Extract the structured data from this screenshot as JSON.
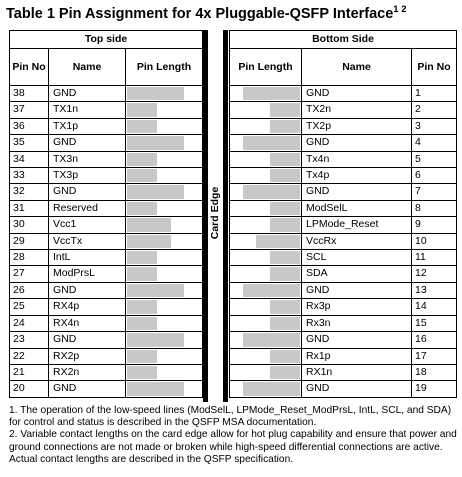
{
  "title": "Table 1  Pin Assignment for 4x Pluggable-QSFP Interface",
  "title_sup": "1 2",
  "top_side": {
    "label": "Top side",
    "headers": [
      "Pin No",
      "Name",
      "Pin Length"
    ],
    "rows": [
      {
        "pin": "38",
        "name": "GND",
        "length": "long"
      },
      {
        "pin": "37",
        "name": "TX1n",
        "length": "short"
      },
      {
        "pin": "36",
        "name": "TX1p",
        "length": "short"
      },
      {
        "pin": "35",
        "name": "GND",
        "length": "long"
      },
      {
        "pin": "34",
        "name": "TX3n",
        "length": "short"
      },
      {
        "pin": "33",
        "name": "TX3p",
        "length": "short"
      },
      {
        "pin": "32",
        "name": "GND",
        "length": "long"
      },
      {
        "pin": "31",
        "name": "Reserved",
        "length": "short"
      },
      {
        "pin": "30",
        "name": "Vcc1",
        "length": "medium"
      },
      {
        "pin": "29",
        "name": "VccTx",
        "length": "medium"
      },
      {
        "pin": "28",
        "name": "IntL",
        "length": "short"
      },
      {
        "pin": "27",
        "name": "ModPrsL",
        "length": "short"
      },
      {
        "pin": "26",
        "name": "GND",
        "length": "long"
      },
      {
        "pin": "25",
        "name": "RX4p",
        "length": "short"
      },
      {
        "pin": "24",
        "name": "RX4n",
        "length": "short"
      },
      {
        "pin": "23",
        "name": "GND",
        "length": "long"
      },
      {
        "pin": "22",
        "name": "RX2p",
        "length": "short"
      },
      {
        "pin": "21",
        "name": "RX2n",
        "length": "short"
      },
      {
        "pin": "20",
        "name": "GND",
        "length": "long"
      }
    ]
  },
  "bottom_side": {
    "label": "Bottom Side",
    "headers": [
      "Pin Length",
      "Name",
      "Pin No"
    ],
    "rows": [
      {
        "pin": "1",
        "name": "GND",
        "length": "long"
      },
      {
        "pin": "2",
        "name": "TX2n",
        "length": "short"
      },
      {
        "pin": "3",
        "name": "TX2p",
        "length": "short"
      },
      {
        "pin": "4",
        "name": "GND",
        "length": "long"
      },
      {
        "pin": "5",
        "name": "Tx4n",
        "length": "short"
      },
      {
        "pin": "6",
        "name": "Tx4p",
        "length": "short"
      },
      {
        "pin": "7",
        "name": "GND",
        "length": "long"
      },
      {
        "pin": "8",
        "name": "ModSelL",
        "length": "short"
      },
      {
        "pin": "9",
        "name": "LPMode_Reset",
        "length": "short"
      },
      {
        "pin": "10",
        "name": "VccRx",
        "length": "medium"
      },
      {
        "pin": "11",
        "name": "SCL",
        "length": "short"
      },
      {
        "pin": "12",
        "name": "SDA",
        "length": "short"
      },
      {
        "pin": "13",
        "name": "GND",
        "length": "long"
      },
      {
        "pin": "14",
        "name": "Rx3p",
        "length": "short"
      },
      {
        "pin": "15",
        "name": "Rx3n",
        "length": "short"
      },
      {
        "pin": "16",
        "name": "GND",
        "length": "long"
      },
      {
        "pin": "17",
        "name": "Rx1p",
        "length": "short"
      },
      {
        "pin": "18",
        "name": "RX1n",
        "length": "short"
      },
      {
        "pin": "19",
        "name": "GND",
        "length": "long"
      }
    ]
  },
  "card_edge_label": "Card Edge",
  "notes": [
    "1. The operation of the low-speed lines (ModSelL, LPMode_Reset_ModPrsL, IntL, SCL, and SDA) for control and status is described in the QSFP MSA documentation.",
    "2. Variable contact lengths on the card edge allow for hot plug capability and ensure that power and ground connections are not made or broken while high-speed differential connections are active. Actual contact lengths are described in the QSFP specification."
  ],
  "colors": {
    "bar": "#c8c8c8",
    "rule": "#000000"
  }
}
